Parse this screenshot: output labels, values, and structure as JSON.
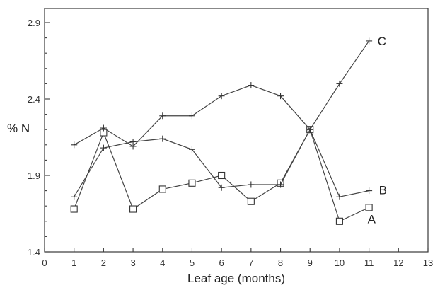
{
  "chart_data": {
    "type": "line",
    "xlabel": "Leaf age (months)",
    "ylabel": "% N",
    "xlim": [
      0,
      13
    ],
    "ylim": [
      1.4,
      3.0
    ],
    "x_ticks": [
      "0",
      "1",
      "2",
      "3",
      "4",
      "5",
      "6",
      "7",
      "8",
      "9",
      "10",
      "11",
      "12",
      "13"
    ],
    "y_ticks": [
      "1.4",
      "1.9",
      "2.4",
      "2.9"
    ],
    "x": [
      1,
      2,
      3,
      4,
      5,
      6,
      7,
      8,
      9,
      10,
      11
    ],
    "grid": false,
    "series": [
      {
        "name": "A",
        "marker": "square",
        "values": [
          1.68,
          2.18,
          1.68,
          1.81,
          1.85,
          1.9,
          1.73,
          1.85,
          2.2,
          1.6,
          1.69
        ]
      },
      {
        "name": "B",
        "marker": "plus",
        "values": [
          1.76,
          2.08,
          2.12,
          2.14,
          2.07,
          1.82,
          1.84,
          1.84,
          2.2,
          1.76,
          1.8
        ]
      },
      {
        "name": "C",
        "marker": "plus",
        "values": [
          2.1,
          2.21,
          2.09,
          2.29,
          2.29,
          2.42,
          2.49,
          2.42,
          2.2,
          2.5,
          2.78
        ]
      }
    ]
  }
}
